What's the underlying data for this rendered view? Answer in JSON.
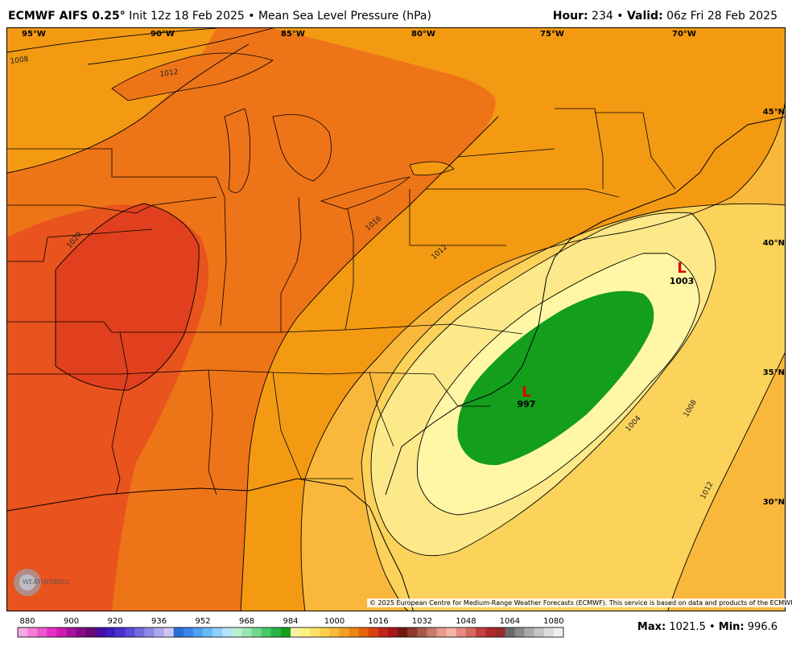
{
  "header": {
    "model": "ECMWF AIFS 0.25",
    "degree": "°",
    "init": " Init 12z 18 Feb 2025",
    "bullet": " • ",
    "field": "Mean Sea Level Pressure (hPa)",
    "hour_label": "Hour:",
    "hour_value": " 234",
    "valid_label": "Valid:",
    "valid_value": " 06z Fri 28 Feb 2025"
  },
  "map": {
    "lon_labels": [
      "95°W",
      "90°W",
      "85°W",
      "80°W",
      "75°W",
      "70°W"
    ],
    "lat_labels": [
      "45°N",
      "40°N",
      "35°N",
      "30°N"
    ],
    "isobar_labels": [
      "1008",
      "1012",
      "1016",
      "1020",
      "1012",
      "1004",
      "1008",
      "1012"
    ],
    "lows": [
      {
        "symbol": "L",
        "value": "997"
      },
      {
        "symbol": "L",
        "value": "1003"
      }
    ],
    "copyright": "© 2025 European Centre for Medium-Range Weather Forecasts (ECMWF). This service is based on data and products of the ECMWF.",
    "logo_text": "WEATHERBELL",
    "colors": {
      "low_green": "#139e1c",
      "pale_yellow": "#fff7a6",
      "light_yellow": "#fde98a",
      "yellow_orange": "#fbd25a",
      "light_orange": "#f9b83c",
      "orange": "#f39a12",
      "dark_orange": "#ee7418",
      "red_orange": "#e8531e",
      "red": "#e0401d",
      "low_symbol": "#e00000"
    }
  },
  "legend": {
    "tick_labels": [
      "880",
      "900",
      "920",
      "936",
      "952",
      "968",
      "984",
      "1000",
      "1016",
      "1032",
      "1048",
      "1064",
      "1080"
    ],
    "colors": [
      "#f9a7e3",
      "#f47fd9",
      "#ee57cf",
      "#e62fc4",
      "#cc1cb2",
      "#a8139b",
      "#860d86",
      "#660a70",
      "#4a0ba6",
      "#3a1ebf",
      "#4532cc",
      "#5a4ad6",
      "#7468de",
      "#9088e6",
      "#b0a8ee",
      "#ccc6f4",
      "#2a6fd8",
      "#3a86e6",
      "#4ea0f0",
      "#6ab8f6",
      "#8ed0fa",
      "#b6e4fc",
      "#b8f0d0",
      "#98e6b0",
      "#70d88c",
      "#48c866",
      "#28b446",
      "#139e1c",
      "#f6f2a0",
      "#fdf080",
      "#fde066",
      "#fbcf4c",
      "#f8bb36",
      "#f4a024",
      "#ee8414",
      "#e4640c",
      "#d64414",
      "#c0241a",
      "#a8141a",
      "#6e1a12",
      "#8c3a2a",
      "#aa5a48",
      "#c87a6a",
      "#e89a8a",
      "#f4b4a8",
      "#e88a80",
      "#d4685e",
      "#c04040",
      "#b02a2a",
      "#9a2a2a",
      "#6a6a6a",
      "#8a8a8a",
      "#aaaaaa",
      "#c4c4c4",
      "#dcdcdc",
      "#eeeeee"
    ],
    "max_label": "Max:",
    "max_value": " 1021.5",
    "sep": " • ",
    "min_label": "Min:",
    "min_value": " 996.6"
  }
}
